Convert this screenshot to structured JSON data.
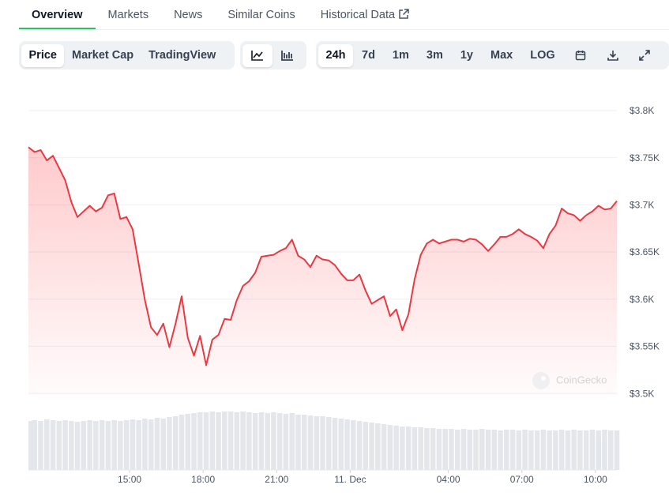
{
  "tabs": [
    "Overview",
    "Markets",
    "News",
    "Similar Coins",
    "Historical Data"
  ],
  "toolbar": {
    "views": [
      "Price",
      "Market Cap",
      "TradingView"
    ],
    "ranges": [
      "24h",
      "7d",
      "1m",
      "3m",
      "1y",
      "Max",
      "LOG"
    ]
  },
  "chart_data": {
    "type": "line",
    "watermark": "CoinGecko",
    "x": [
      10.875,
      11.125,
      11.375,
      11.625,
      11.875,
      12.125,
      12.375,
      12.625,
      12.875,
      13.125,
      13.375,
      13.625,
      13.875,
      14.125,
      14.375,
      14.625,
      14.875,
      15.125,
      15.375,
      15.625,
      15.875,
      16.125,
      16.375,
      16.625,
      16.875,
      17.125,
      17.375,
      17.625,
      17.875,
      18.125,
      18.375,
      18.625,
      18.875,
      19.125,
      19.375,
      19.625,
      19.875,
      20.125,
      20.375,
      20.625,
      20.875,
      21.125,
      21.375,
      21.625,
      21.875,
      22.125,
      22.375,
      22.625,
      22.875,
      23.125,
      23.375,
      23.625,
      23.875,
      24.125,
      24.375,
      24.625,
      24.875,
      25.125,
      25.375,
      25.625,
      25.875,
      26.125,
      26.375,
      26.625,
      26.875,
      27.125,
      27.375,
      27.625,
      27.875,
      28.125,
      28.375,
      28.625,
      28.875,
      29.125,
      29.375,
      29.625,
      29.875,
      30.125,
      30.375,
      30.625,
      30.875,
      31.125,
      31.375,
      31.625,
      31.875,
      32.125,
      32.375,
      32.625,
      32.875,
      33.125,
      33.375,
      33.625,
      33.875,
      34.125,
      34.375,
      34.625,
      34.875
    ],
    "series": [
      {
        "color": "#ea3943",
        "values": [
          3761,
          3756,
          3758,
          3747,
          3752,
          3739,
          3726,
          3703,
          3687,
          3693,
          3699,
          3693,
          3697,
          3710,
          3712,
          3685,
          3687,
          3674,
          3637,
          3599,
          3570,
          3562,
          3574,
          3549,
          3574,
          3603,
          3559,
          3540,
          3561,
          3530,
          3557,
          3562,
          3579,
          3578,
          3599,
          3614,
          3619,
          3628,
          3645,
          3646,
          3647,
          3651,
          3654,
          3663,
          3646,
          3642,
          3634,
          3646,
          3642,
          3641,
          3636,
          3627,
          3620,
          3620,
          3626,
          3609,
          3595,
          3599,
          3603,
          3582,
          3589,
          3567,
          3584,
          3621,
          3647,
          3659,
          3663,
          3659,
          3661,
          3663,
          3663,
          3661,
          3664,
          3663,
          3658,
          3651,
          3658,
          3666,
          3666,
          3669,
          3674,
          3669,
          3666,
          3662,
          3654,
          3669,
          3678,
          3696,
          3691,
          3689,
          3683,
          3689,
          3693,
          3699,
          3695,
          3696,
          3704
        ]
      }
    ],
    "volume": {
      "color": "#e3e6ea",
      "values": [
        62,
        63,
        62,
        64,
        63,
        62,
        63,
        62,
        61,
        62,
        63,
        62,
        63,
        62,
        63,
        62,
        63,
        64,
        63,
        65,
        64,
        66,
        65,
        67,
        68,
        70,
        71,
        72,
        73,
        73,
        74,
        73,
        74,
        74,
        73,
        74,
        73,
        72,
        73,
        72,
        73,
        72,
        71,
        72,
        70,
        70,
        69,
        68,
        68,
        67,
        66,
        65,
        64,
        63,
        62,
        61,
        60,
        59,
        58,
        57,
        56,
        55,
        55,
        54,
        54,
        53,
        53,
        52,
        52,
        52,
        51,
        52,
        51,
        51,
        52,
        51,
        51,
        50,
        51,
        51,
        50,
        51,
        50,
        50,
        51,
        50,
        50,
        51,
        50,
        51,
        50,
        50,
        51,
        50,
        51,
        50,
        50
      ]
    },
    "xlim": [
      10.875,
      34.875
    ],
    "xticks": [
      {
        "value": 15,
        "label": "15:00"
      },
      {
        "value": 18,
        "label": "18:00"
      },
      {
        "value": 21,
        "label": "21:00"
      },
      {
        "value": 24,
        "label": "11. Dec"
      },
      {
        "value": 28,
        "label": "04:00"
      },
      {
        "value": 31,
        "label": "07:00"
      },
      {
        "value": 34,
        "label": "10:00"
      }
    ],
    "ylim": [
      3480,
      3820
    ],
    "yticks": [
      {
        "value": 3500,
        "label": "$3.5K"
      },
      {
        "value": 3550,
        "label": "$3.55K"
      },
      {
        "value": 3600,
        "label": "$3.6K"
      },
      {
        "value": 3650,
        "label": "$3.65K"
      },
      {
        "value": 3700,
        "label": "$3.7K"
      },
      {
        "value": 3750,
        "label": "$3.75K"
      },
      {
        "value": 3800,
        "label": "$3.8K"
      }
    ],
    "grid": true
  }
}
